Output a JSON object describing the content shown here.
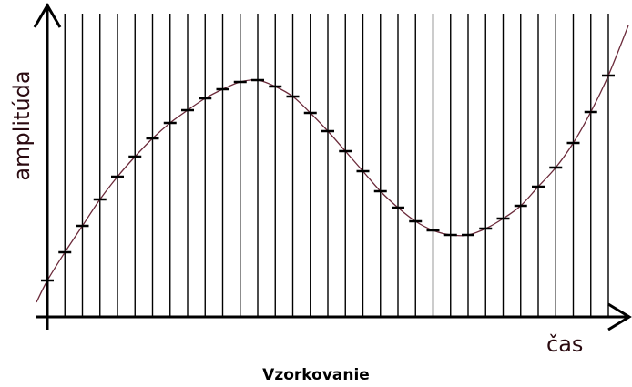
{
  "axis_labels": {
    "y": "amplitúda",
    "x": "čas"
  },
  "caption": "Vzorkovanie"
}
